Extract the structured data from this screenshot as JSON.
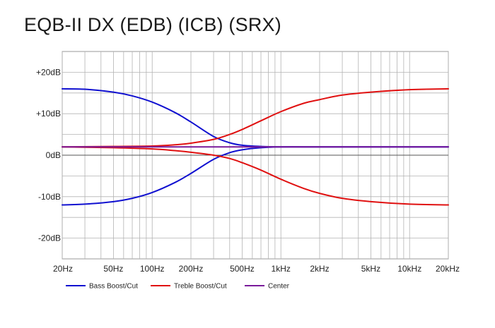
{
  "chart_data": {
    "type": "line",
    "title": "EQB-II DX (EDB) (ICB) (SRX)",
    "x_scale": "log",
    "xlim": [
      20,
      20000
    ],
    "ylim": [
      -25,
      25
    ],
    "x_ticks": [
      20,
      50,
      100,
      200,
      500,
      1000,
      2000,
      5000,
      10000,
      20000
    ],
    "x_tick_labels": [
      "20Hz",
      "50Hz",
      "100Hz",
      "200Hz",
      "500Hz",
      "1kHz",
      "2kHz",
      "5kHz",
      "10kHz",
      "20kHz"
    ],
    "y_ticks": [
      20,
      10,
      0,
      -10,
      -20
    ],
    "y_tick_labels": [
      "+20dB",
      "+10dB",
      "0dB",
      "-10dB",
      "-20dB"
    ],
    "grid": true,
    "legend_position": "bottom-left",
    "series": [
      {
        "name": "Bass Boost/Cut",
        "color": "#1010d0",
        "curves": [
          {
            "x": [
              20,
              30,
              50,
              70,
              100,
              150,
              200,
              300,
              400,
              500,
              700,
              1000,
              2000,
              5000,
              20000
            ],
            "y": [
              16,
              15.9,
              15.2,
              14.3,
              12.8,
              10.3,
              8.0,
              4.5,
              3.0,
              2.4,
              2.1,
              2.0,
              2.0,
              2.0,
              2.0
            ]
          },
          {
            "x": [
              20,
              30,
              50,
              70,
              100,
              150,
              200,
              300,
              400,
              500,
              700,
              1000,
              2000,
              5000,
              20000
            ],
            "y": [
              -12,
              -11.8,
              -11.2,
              -10.4,
              -9.0,
              -6.6,
              -4.4,
              -1.0,
              0.6,
              1.3,
              1.8,
              2.0,
              2.0,
              2.0,
              2.0
            ]
          }
        ]
      },
      {
        "name": "Treble Boost/Cut",
        "color": "#e01010",
        "curves": [
          {
            "x": [
              20,
              50,
              100,
              150,
              200,
              300,
              400,
              500,
              700,
              1000,
              1500,
              2000,
              3000,
              5000,
              10000,
              20000
            ],
            "y": [
              2.0,
              2.1,
              2.2,
              2.5,
              2.9,
              3.8,
              5.0,
              6.2,
              8.3,
              10.5,
              12.5,
              13.4,
              14.5,
              15.2,
              15.8,
              16.0
            ]
          },
          {
            "x": [
              20,
              50,
              100,
              150,
              200,
              300,
              400,
              500,
              700,
              1000,
              1500,
              2000,
              3000,
              5000,
              10000,
              20000
            ],
            "y": [
              2.0,
              1.8,
              1.5,
              1.1,
              0.7,
              0.0,
              -0.8,
              -1.8,
              -3.6,
              -5.8,
              -8.0,
              -9.2,
              -10.4,
              -11.2,
              -11.8,
              -12.0
            ]
          }
        ]
      },
      {
        "name": "Center",
        "color": "#7a1a9a",
        "curves": [
          {
            "x": [
              20,
              20000
            ],
            "y": [
              2.0,
              2.0
            ]
          }
        ]
      }
    ]
  }
}
